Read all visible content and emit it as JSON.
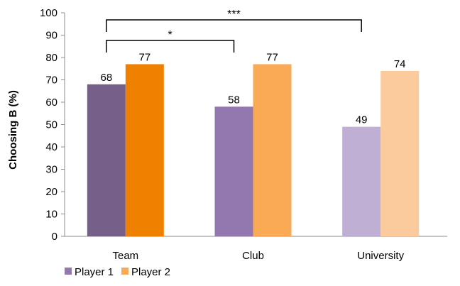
{
  "chart_data": {
    "type": "bar",
    "ylabel": "Choosing B (%)",
    "xlabel": "",
    "ylim": [
      0,
      100
    ],
    "yticks": [
      0,
      10,
      20,
      30,
      40,
      50,
      60,
      70,
      80,
      90,
      100
    ],
    "categories": [
      "Team",
      "Club",
      "University"
    ],
    "series": [
      {
        "name": "Player 1",
        "values": [
          68,
          58,
          49
        ],
        "colors": [
          "#76608A",
          "#9278AE",
          "#C0AFD4"
        ]
      },
      {
        "name": "Player 2",
        "values": [
          77,
          77,
          74
        ],
        "colors": [
          "#F08000",
          "#FAA955",
          "#FBCB9D"
        ]
      }
    ],
    "legend": {
      "position": "bottom-left",
      "swatch_colors": [
        "#9278AE",
        "#FAA955"
      ]
    },
    "significance": [
      {
        "from": "Team",
        "to": "Club",
        "label": "*"
      },
      {
        "from": "Team",
        "to": "University",
        "label": "***"
      }
    ],
    "grid": false
  }
}
